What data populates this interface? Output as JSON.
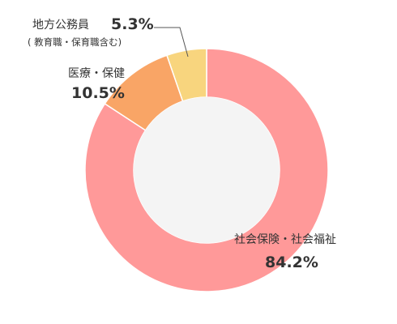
{
  "chart_data": {
    "type": "pie",
    "donut": true,
    "start_angle_deg": 0,
    "direction": "clockwise",
    "slices": [
      {
        "name": "社会保険・社会福祉",
        "value": 84.2,
        "value_label": "84.2%",
        "color": "#FF9999"
      },
      {
        "name": "医療・保健",
        "value": 10.5,
        "value_label": "10.5%",
        "color": "#F9A566"
      },
      {
        "name": "地方公務員",
        "sub": "( 教育職・保育職含む)",
        "value": 5.3,
        "value_label": "5.3%",
        "color": "#F8D57E"
      }
    ],
    "hole_color": "#F4F4F4",
    "separator_color": "#FFFFFF",
    "leader_line_color": "#555555"
  }
}
